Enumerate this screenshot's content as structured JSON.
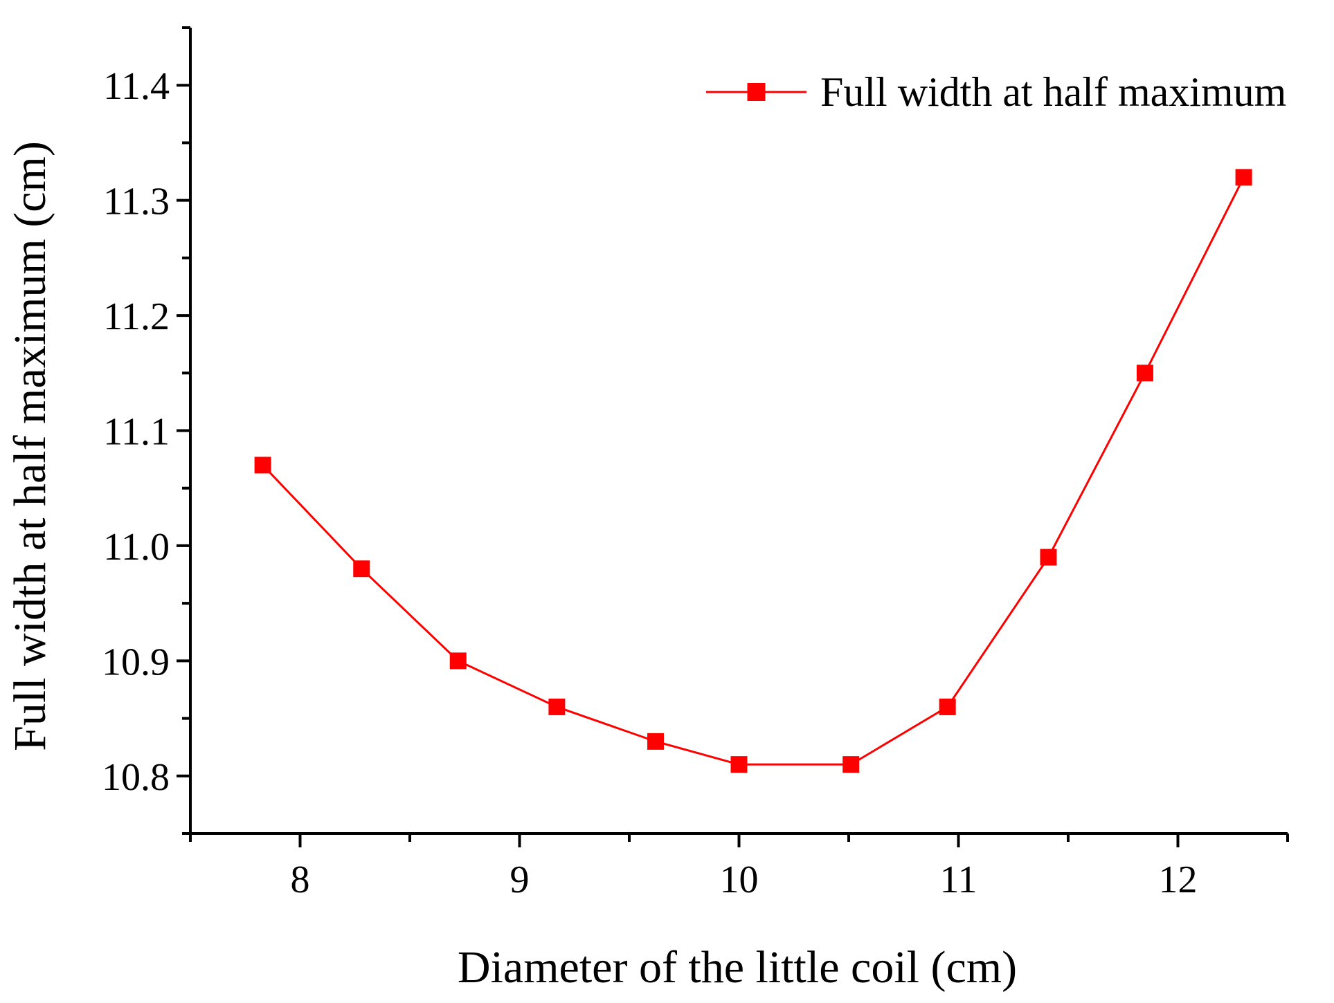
{
  "chart_data": {
    "type": "line",
    "title": "",
    "xlabel": "Diameter of the little coil (cm)",
    "ylabel": "Full width at half maximum (cm)",
    "xlim": [
      7.5,
      12.5
    ],
    "ylim": [
      10.75,
      11.45
    ],
    "x_ticks": [
      8,
      9,
      10,
      11,
      12
    ],
    "x_tick_labels": [
      "8",
      "9",
      "10",
      "11",
      "12"
    ],
    "y_ticks": [
      10.8,
      10.9,
      11.0,
      11.1,
      11.2,
      11.3,
      11.4
    ],
    "y_tick_labels": [
      "10.8",
      "10.9",
      "11.0",
      "11.1",
      "11.2",
      "11.3",
      "11.4"
    ],
    "grid": false,
    "legend_position": "top-right",
    "series": [
      {
        "name": "Full width at half maximum",
        "color": "#ff0000",
        "marker": "square",
        "x": [
          7.83,
          8.28,
          8.72,
          9.17,
          9.62,
          10.0,
          10.51,
          10.95,
          11.41,
          11.85,
          12.3
        ],
        "y": [
          11.07,
          10.98,
          10.9,
          10.86,
          10.83,
          10.81,
          10.81,
          10.86,
          10.99,
          11.15,
          11.32
        ]
      }
    ]
  }
}
